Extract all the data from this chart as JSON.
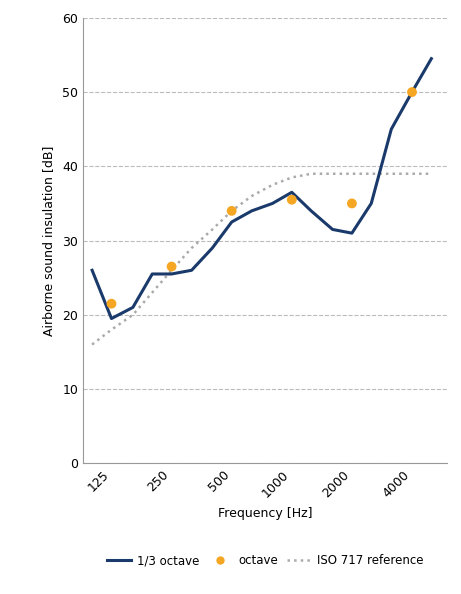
{
  "third_octave_x": [
    100,
    125,
    160,
    200,
    250,
    315,
    400,
    500,
    630,
    800,
    1000,
    1250,
    1600,
    2000,
    2500,
    3150,
    4000,
    5000
  ],
  "third_octave_y": [
    26,
    19.5,
    21,
    25.5,
    25.5,
    26,
    29,
    32.5,
    34,
    35,
    36.5,
    34,
    31.5,
    31,
    35,
    45,
    50,
    54.5
  ],
  "octave_x": [
    125,
    250,
    500,
    1000,
    2000,
    4000
  ],
  "octave_y": [
    21.5,
    26.5,
    34,
    35.5,
    35,
    50
  ],
  "iso_x": [
    100,
    125,
    160,
    200,
    250,
    315,
    400,
    500,
    630,
    800,
    1000,
    1250,
    1600,
    2000,
    2500,
    3150,
    4000,
    5000
  ],
  "iso_y": [
    16,
    18,
    20,
    23,
    26,
    29,
    31.5,
    34,
    36,
    37.5,
    38.5,
    39,
    39,
    39,
    39,
    39,
    39,
    39
  ],
  "line_color": "#1a3a6b",
  "octave_color": "#f5a623",
  "iso_color": "#aaaaaa",
  "xlabel": "Frequency [Hz]",
  "ylabel": "Airborne sound insulation [dB]",
  "legend_labels": [
    "1/3 octave",
    "octave",
    "ISO 717 reference"
  ],
  "xtick_labels": [
    "125",
    "250",
    "500",
    "1000",
    "2000",
    "4000"
  ],
  "xtick_positions": [
    125,
    250,
    500,
    1000,
    2000,
    4000
  ],
  "ylim": [
    0,
    60
  ],
  "xlim_left": 90,
  "xlim_right": 6000,
  "background_color": "#ffffff",
  "grid_color": "#bbbbbb",
  "figsize": [
    4.61,
    5.94
  ],
  "dpi": 100
}
